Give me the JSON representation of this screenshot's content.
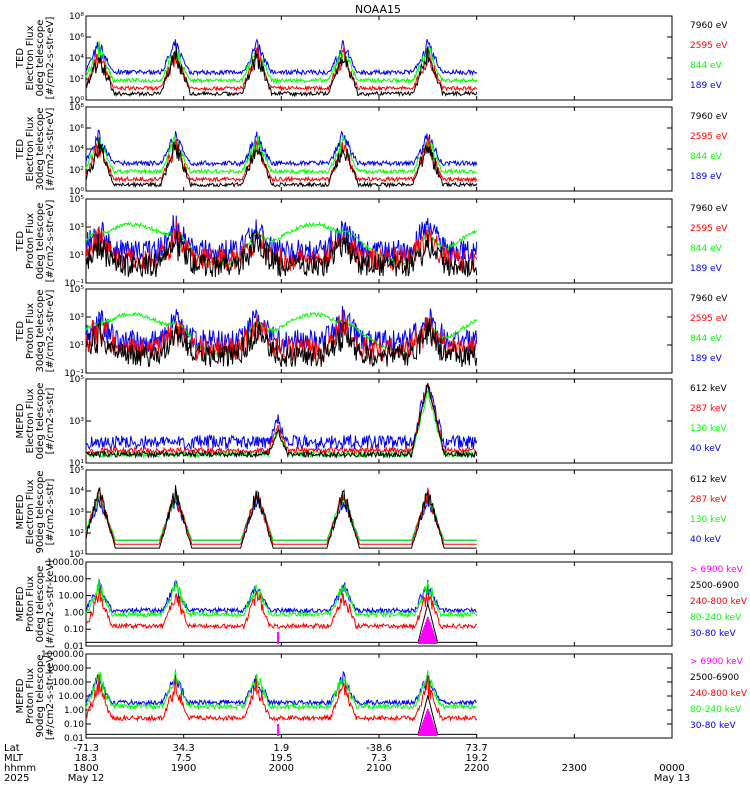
{
  "title": "NOAA15",
  "colors": {
    "black": "#000000",
    "red": "#ff0000",
    "green": "#00ff00",
    "blue": "#0000ff",
    "magenta": "#ff00ff"
  },
  "panels": [
    {
      "ylabel": [
        "TED",
        "Electron Flux",
        "0deg telescope",
        "[#/cm2-s-str-eV]"
      ],
      "ticks": [
        "10⁰",
        "10²",
        "10⁴",
        "10⁶",
        "10⁸"
      ],
      "legend": [
        {
          "text": "7960 eV",
          "color": "black"
        },
        {
          "text": "2595 eV",
          "color": "red"
        },
        {
          "text": "844 eV",
          "color": "green"
        },
        {
          "text": "189 eV",
          "color": "blue"
        }
      ]
    },
    {
      "ylabel": [
        "TED",
        "Electron Flux",
        "30deg telescope",
        "[#/cm2-s-str-eV]"
      ],
      "ticks": [
        "10⁰",
        "10²",
        "10⁴",
        "10⁶",
        "10⁸"
      ],
      "legend": [
        {
          "text": "7960 eV",
          "color": "black"
        },
        {
          "text": "2595 eV",
          "color": "red"
        },
        {
          "text": "844 eV",
          "color": "green"
        },
        {
          "text": "189 eV",
          "color": "blue"
        }
      ]
    },
    {
      "ylabel": [
        "TED",
        "Proton Flux",
        "0deg telescope",
        "[#/cm2-s-str-eV]"
      ],
      "ticks": [
        "10⁻¹",
        "10¹",
        "10³",
        "10⁵"
      ],
      "minor_ticks": [
        "10⁰",
        "10²",
        "10⁴"
      ],
      "legend": [
        {
          "text": "7960 eV",
          "color": "black"
        },
        {
          "text": "2595 eV",
          "color": "red"
        },
        {
          "text": "844 eV",
          "color": "green"
        },
        {
          "text": "189 eV",
          "color": "blue"
        }
      ]
    },
    {
      "ylabel": [
        "TED",
        "Proton Flux",
        "30deg telescope",
        "[#/cm2-s-str-eV]"
      ],
      "ticks": [
        "10⁻¹",
        "10¹",
        "10³",
        "10⁵"
      ],
      "minor_ticks": [
        "10⁰",
        "10²",
        "10⁴"
      ],
      "legend": [
        {
          "text": "7960 eV",
          "color": "black"
        },
        {
          "text": "2595 eV",
          "color": "red"
        },
        {
          "text": "844 eV",
          "color": "green"
        },
        {
          "text": "189 eV",
          "color": "blue"
        }
      ]
    },
    {
      "ylabel": [
        "MEPED",
        "Electron Flux",
        "0deg telescope",
        "[#/cm2-s-str]"
      ],
      "ticks": [
        "10¹",
        "10³",
        "10⁵"
      ],
      "minor_ticks": [
        "10²",
        "10⁴"
      ],
      "legend": [
        {
          "text": "612 keV",
          "color": "black"
        },
        {
          "text": "287 keV",
          "color": "red"
        },
        {
          "text": "130 keV",
          "color": "green"
        },
        {
          "text": "40 keV",
          "color": "blue"
        }
      ]
    },
    {
      "ylabel": [
        "MEPED",
        "Electron Flux",
        "90deg telescope",
        "[#/cm2-s-str]"
      ],
      "ticks": [
        "10¹",
        "10²",
        "10³",
        "10⁴",
        "10⁵"
      ],
      "legend": [
        {
          "text": "612 keV",
          "color": "black"
        },
        {
          "text": "287 keV",
          "color": "red"
        },
        {
          "text": "130 keV",
          "color": "green"
        },
        {
          "text": "40 keV",
          "color": "blue"
        }
      ]
    },
    {
      "ylabel": [
        "MEPED",
        "Proton Flux",
        "0deg telescope",
        "[#/cm2-s-str-keV]"
      ],
      "ticks": [
        "0.01",
        "0.10",
        "1.00",
        "10.00",
        "100.00",
        "1000.00"
      ],
      "legend": [
        {
          "text": "> 6900 keV",
          "color": "magenta"
        },
        {
          "text": "2500-6900",
          "color": "black"
        },
        {
          "text": "240-800 keV",
          "color": "red"
        },
        {
          "text": "80-240 keV",
          "color": "green"
        },
        {
          "text": "30-80 keV",
          "color": "blue"
        }
      ]
    },
    {
      "ylabel": [
        "MEPED",
        "Proton Flux",
        "90deg telescope",
        "[#/cm2-s-str-keV]"
      ],
      "ticks": [
        "0.01",
        "0.10",
        "1.00",
        "10.00",
        "100.00",
        "1000.00",
        "10000.00"
      ],
      "legend": [
        {
          "text": "> 6900 keV",
          "color": "magenta"
        },
        {
          "text": "2500-6900",
          "color": "black"
        },
        {
          "text": "240-800 keV",
          "color": "red"
        },
        {
          "text": "80-240 keV",
          "color": "green"
        },
        {
          "text": "30-80 keV",
          "color": "blue"
        }
      ]
    }
  ],
  "xaxis": {
    "rows": [
      {
        "label": "Lat",
        "values": [
          "-71.3",
          "34.3",
          "1.9",
          "-38.6",
          "73.7"
        ]
      },
      {
        "label": "MLT",
        "values": [
          "18.3",
          "7.5",
          "19.5",
          "7.3",
          "19.2"
        ]
      },
      {
        "label": "hhmm",
        "values": [
          "1800",
          "1900",
          "2000",
          "2100",
          "2200",
          "2300",
          "0000"
        ]
      },
      {
        "label": "2025",
        "values": [
          "May 12",
          "",
          "",
          "",
          "",
          "",
          "May 13"
        ]
      }
    ]
  },
  "chart_data": {
    "type": "line",
    "title": "NOAA15",
    "x_range": [
      "1800",
      "0000"
    ],
    "x_ticks": [
      "1800",
      "1900",
      "2000",
      "2100",
      "2200",
      "2300",
      "0000"
    ],
    "data_extent_end": "2200",
    "series_note": "Time-series flux per energy channel, eight stacked panels"
  }
}
